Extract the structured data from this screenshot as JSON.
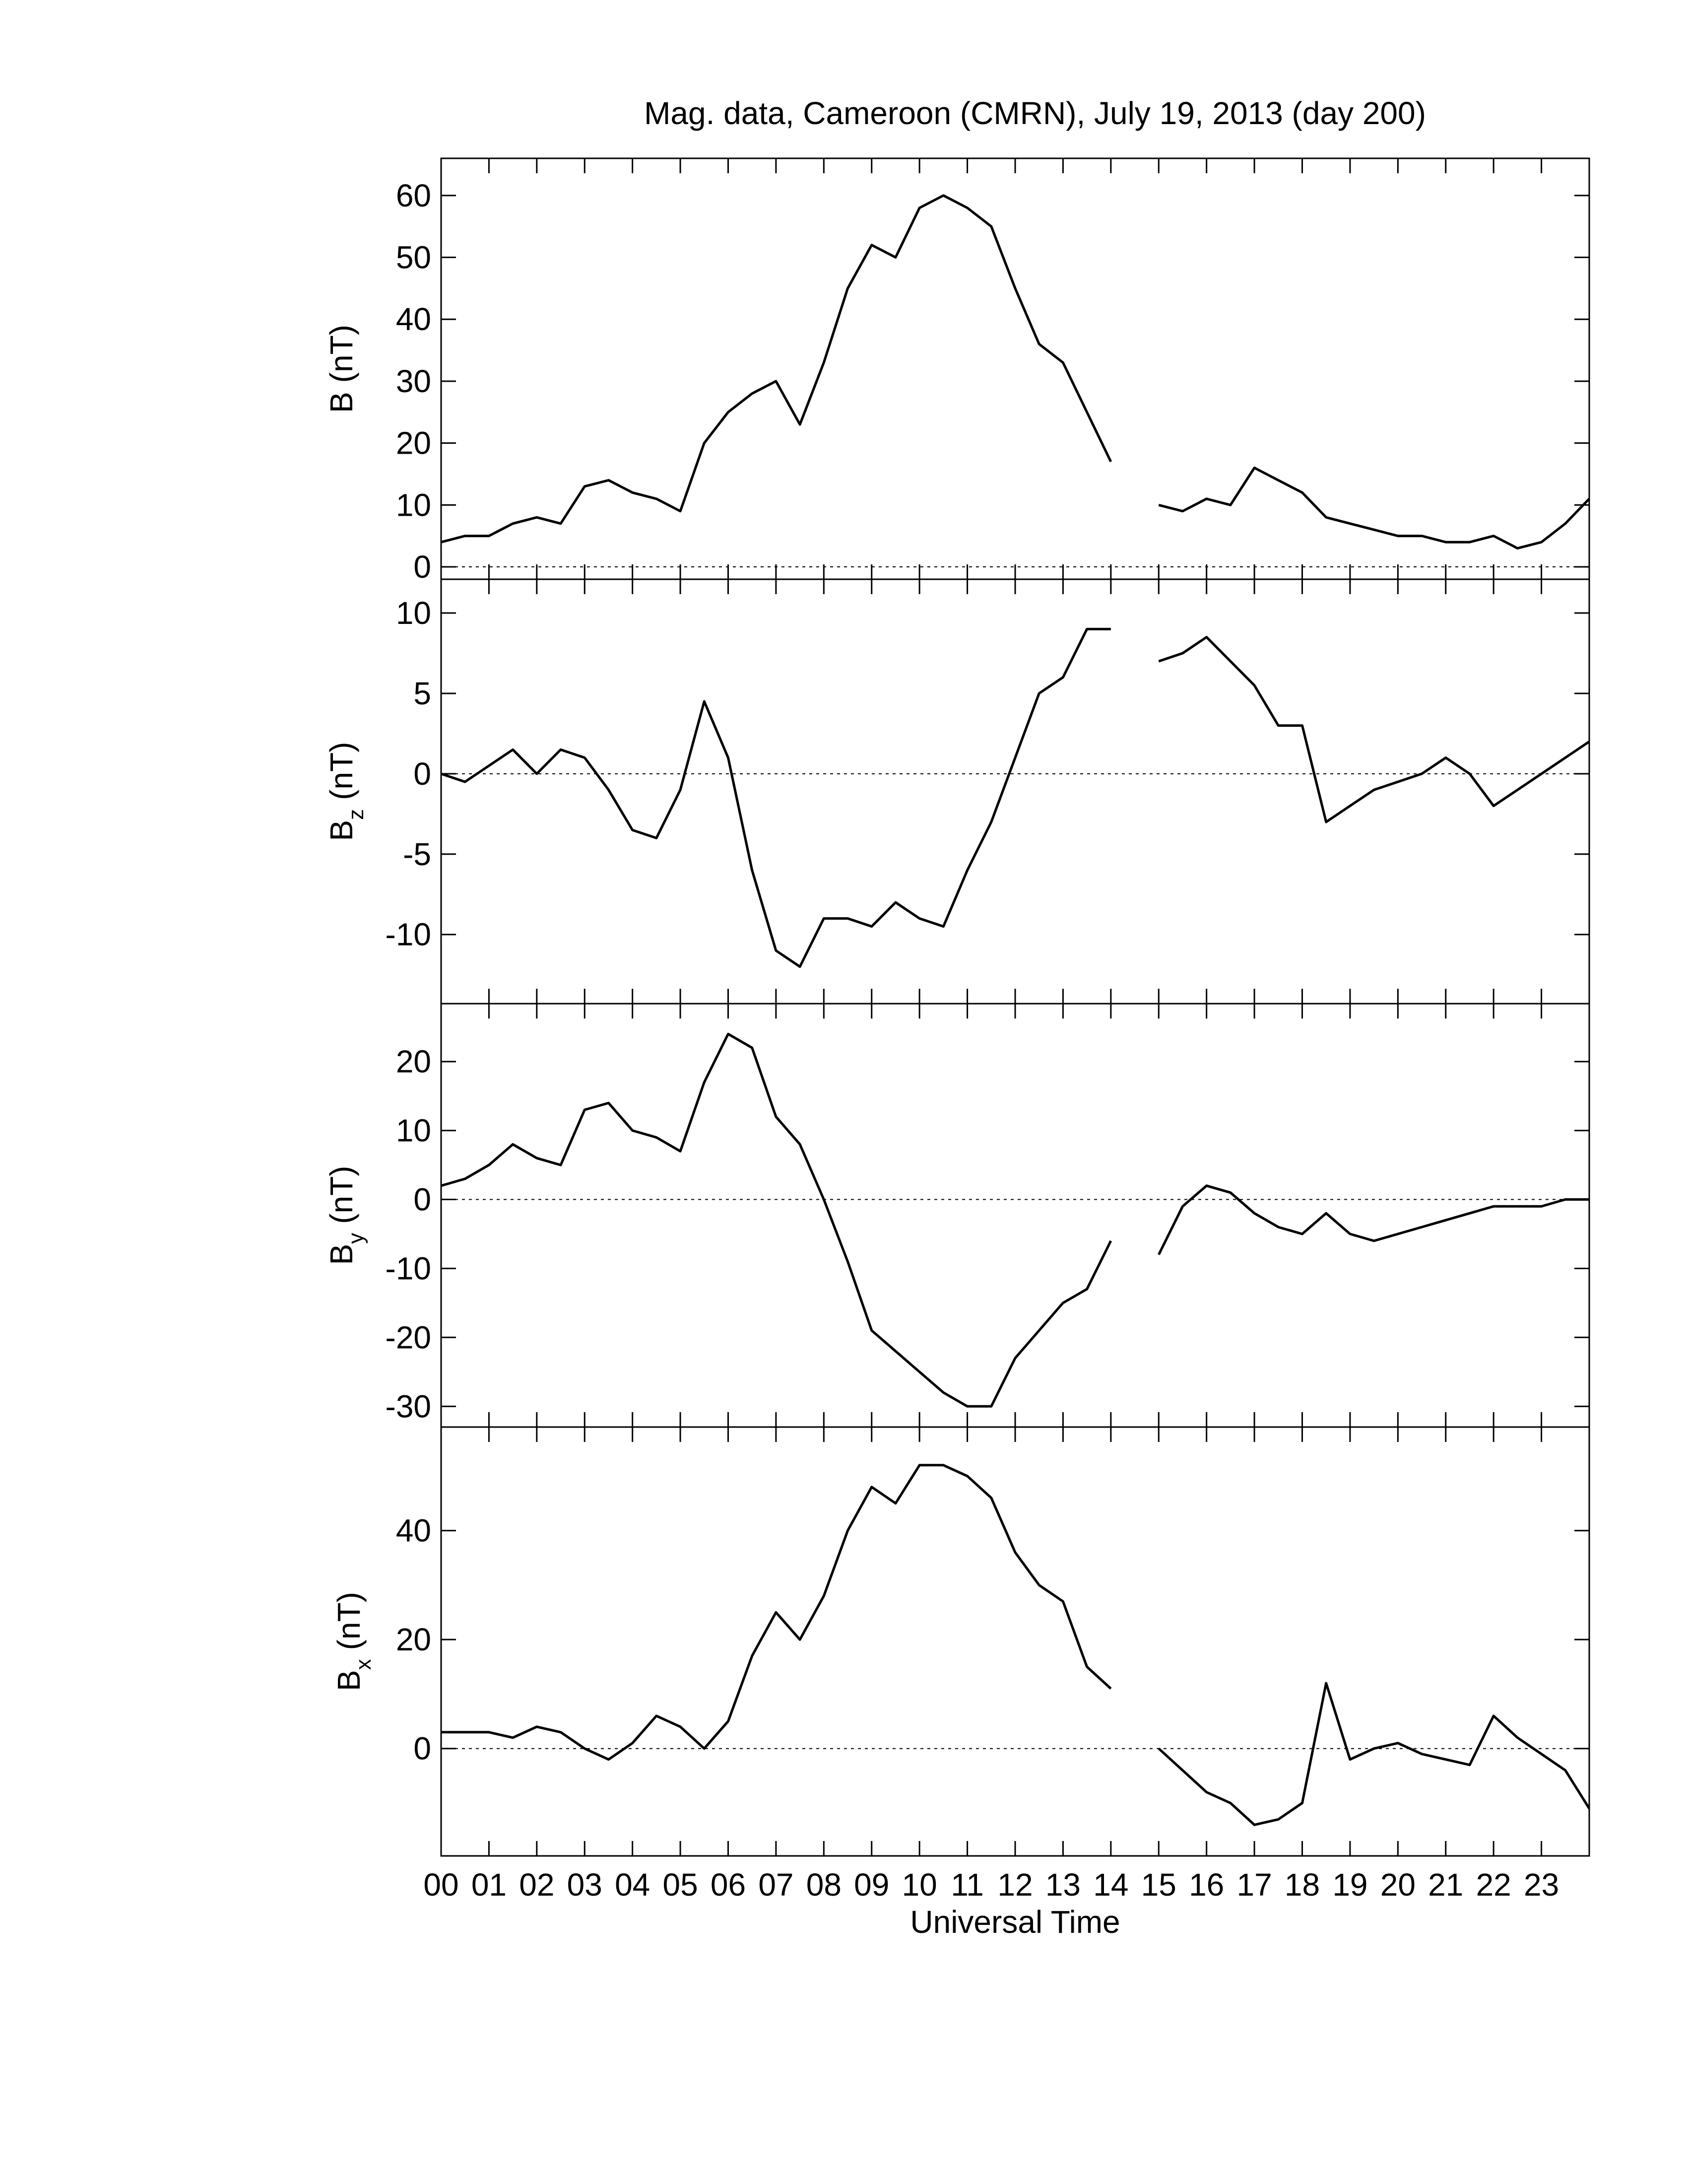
{
  "chart_data": [
    {
      "type": "line",
      "title": "Mag. data, Cameroon (CMRN), July 19, 2013 (day 200)",
      "ylabel": {
        "symbol": "B",
        "unit": "(nT)"
      },
      "xlim": [
        0,
        24
      ],
      "ylim": [
        -2,
        66
      ],
      "yticks": [
        0,
        10,
        20,
        30,
        40,
        50,
        60
      ],
      "hline": 0,
      "x": [
        0,
        0.5,
        1,
        1.5,
        2,
        2.5,
        3,
        3.5,
        4,
        4.5,
        5,
        5.5,
        6,
        6.5,
        7,
        7.5,
        8,
        8.5,
        9,
        9.5,
        10,
        10.5,
        11,
        11.5,
        12,
        12.5,
        13,
        13.5,
        14,
        14.5,
        15,
        15.5,
        16,
        16.5,
        17,
        17.5,
        18,
        18.5,
        19,
        19.5,
        20,
        20.5,
        21,
        21.5,
        22,
        22.5,
        23,
        23.5,
        24
      ],
      "series": [
        {
          "color": "#000000",
          "values": [
            4,
            5,
            5,
            7,
            8,
            7,
            13,
            14,
            12,
            11,
            9,
            20,
            25,
            28,
            30,
            23,
            33,
            45,
            52,
            50,
            58,
            60,
            58,
            55,
            45,
            36,
            33,
            25,
            17,
            null,
            10,
            9,
            11,
            10,
            16,
            14,
            12,
            8,
            7,
            6,
            5,
            5,
            4,
            4,
            5,
            3,
            4,
            7,
            11
          ]
        }
      ]
    },
    {
      "type": "line",
      "ylabel": {
        "symbol": "B",
        "subscript": "z",
        "unit": "(nT)"
      },
      "xlim": [
        0,
        24
      ],
      "ylim": [
        -14.3,
        12.1
      ],
      "yticks": [
        -10,
        -5,
        0,
        5,
        10
      ],
      "hline": 0,
      "x": [
        0,
        0.5,
        1,
        1.5,
        2,
        2.5,
        3,
        3.5,
        4,
        4.5,
        5,
        5.5,
        6,
        6.5,
        7,
        7.5,
        8,
        8.5,
        9,
        9.5,
        10,
        10.5,
        11,
        11.5,
        12,
        12.5,
        13,
        13.5,
        14,
        14.5,
        15,
        15.5,
        16,
        16.5,
        17,
        17.5,
        18,
        18.5,
        19,
        19.5,
        20,
        20.5,
        21,
        21.5,
        22,
        22.5,
        23,
        23.5,
        24
      ],
      "series": [
        {
          "color": "#000000",
          "values": [
            0,
            -0.5,
            0.5,
            1.5,
            0,
            1.5,
            1,
            -1,
            -3.5,
            -4,
            -1,
            4.5,
            1,
            -6,
            -11,
            -12,
            -9,
            -9,
            -9.5,
            -8,
            -9,
            -9.5,
            -6,
            -3,
            1,
            5,
            6,
            9,
            9,
            null,
            7,
            7.5,
            8.5,
            7,
            5.5,
            3,
            3,
            -3,
            -2,
            -1,
            -0.5,
            0,
            1,
            0,
            -2,
            -1,
            0,
            1,
            2
          ]
        }
      ]
    },
    {
      "type": "line",
      "ylabel": {
        "symbol": "B",
        "subscript": "y",
        "unit": "(nT)"
      },
      "xlim": [
        0,
        24
      ],
      "ylim": [
        -33,
        28.4
      ],
      "yticks": [
        -30,
        -20,
        -10,
        0,
        10,
        20
      ],
      "hline": 0,
      "x": [
        0,
        0.5,
        1,
        1.5,
        2,
        2.5,
        3,
        3.5,
        4,
        4.5,
        5,
        5.5,
        6,
        6.5,
        7,
        7.5,
        8,
        8.5,
        9,
        9.5,
        10,
        10.5,
        11,
        11.5,
        12,
        12.5,
        13,
        13.5,
        14,
        14.5,
        15,
        15.5,
        16,
        16.5,
        17,
        17.5,
        18,
        18.5,
        19,
        19.5,
        20,
        20.5,
        21,
        21.5,
        22,
        22.5,
        23,
        23.5,
        24
      ],
      "series": [
        {
          "color": "#000000",
          "values": [
            2,
            3,
            5,
            8,
            6,
            5,
            13,
            14,
            10,
            9,
            7,
            17,
            24,
            22,
            12,
            8,
            0,
            -9,
            -19,
            -22,
            -25,
            -28,
            -30,
            -30,
            -23,
            -19,
            -15,
            -13,
            -6,
            null,
            -8,
            -1,
            2,
            1,
            -2,
            -4,
            -5,
            -2,
            -5,
            -6,
            -5,
            -4,
            -3,
            -2,
            -1,
            -1,
            -1,
            0,
            0
          ]
        }
      ]
    },
    {
      "type": "line",
      "ylabel": {
        "symbol": "B",
        "subscript": "x",
        "unit": "(nT)"
      },
      "xlabel": "Universal Time",
      "xlim": [
        0,
        24
      ],
      "ylim": [
        -19.7,
        59
      ],
      "yticks": [
        0,
        20,
        40
      ],
      "hline": 0,
      "xticks": [
        {
          "value": 0,
          "label": "00"
        },
        {
          "value": 1,
          "label": "01"
        },
        {
          "value": 2,
          "label": "02"
        },
        {
          "value": 3,
          "label": "03"
        },
        {
          "value": 4,
          "label": "04"
        },
        {
          "value": 5,
          "label": "05"
        },
        {
          "value": 6,
          "label": "06"
        },
        {
          "value": 7,
          "label": "07"
        },
        {
          "value": 8,
          "label": "08"
        },
        {
          "value": 9,
          "label": "09"
        },
        10,
        11,
        12,
        13,
        14,
        15,
        16,
        17,
        18,
        19,
        20,
        21,
        22,
        23
      ],
      "x": [
        0,
        0.5,
        1,
        1.5,
        2,
        2.5,
        3,
        3.5,
        4,
        4.5,
        5,
        5.5,
        6,
        6.5,
        7,
        7.5,
        8,
        8.5,
        9,
        9.5,
        10,
        10.5,
        11,
        11.5,
        12,
        12.5,
        13,
        13.5,
        14,
        14.5,
        15,
        15.5,
        16,
        16.5,
        17,
        17.5,
        18,
        18.5,
        19,
        19.5,
        20,
        20.5,
        21,
        21.5,
        22,
        22.5,
        23,
        23.5,
        24
      ],
      "series": [
        {
          "color": "#000000",
          "values": [
            3,
            3,
            3,
            2,
            4,
            3,
            0,
            -2,
            1,
            6,
            4,
            0,
            5,
            17,
            25,
            20,
            28,
            40,
            48,
            45,
            52,
            52,
            50,
            46,
            36,
            30,
            27,
            15,
            11,
            null,
            0,
            -4,
            -8,
            -10,
            -14,
            -13,
            -10,
            12,
            -2,
            0,
            1,
            -1,
            -2,
            -3,
            6,
            2,
            -1,
            -4,
            -11
          ]
        }
      ]
    }
  ]
}
